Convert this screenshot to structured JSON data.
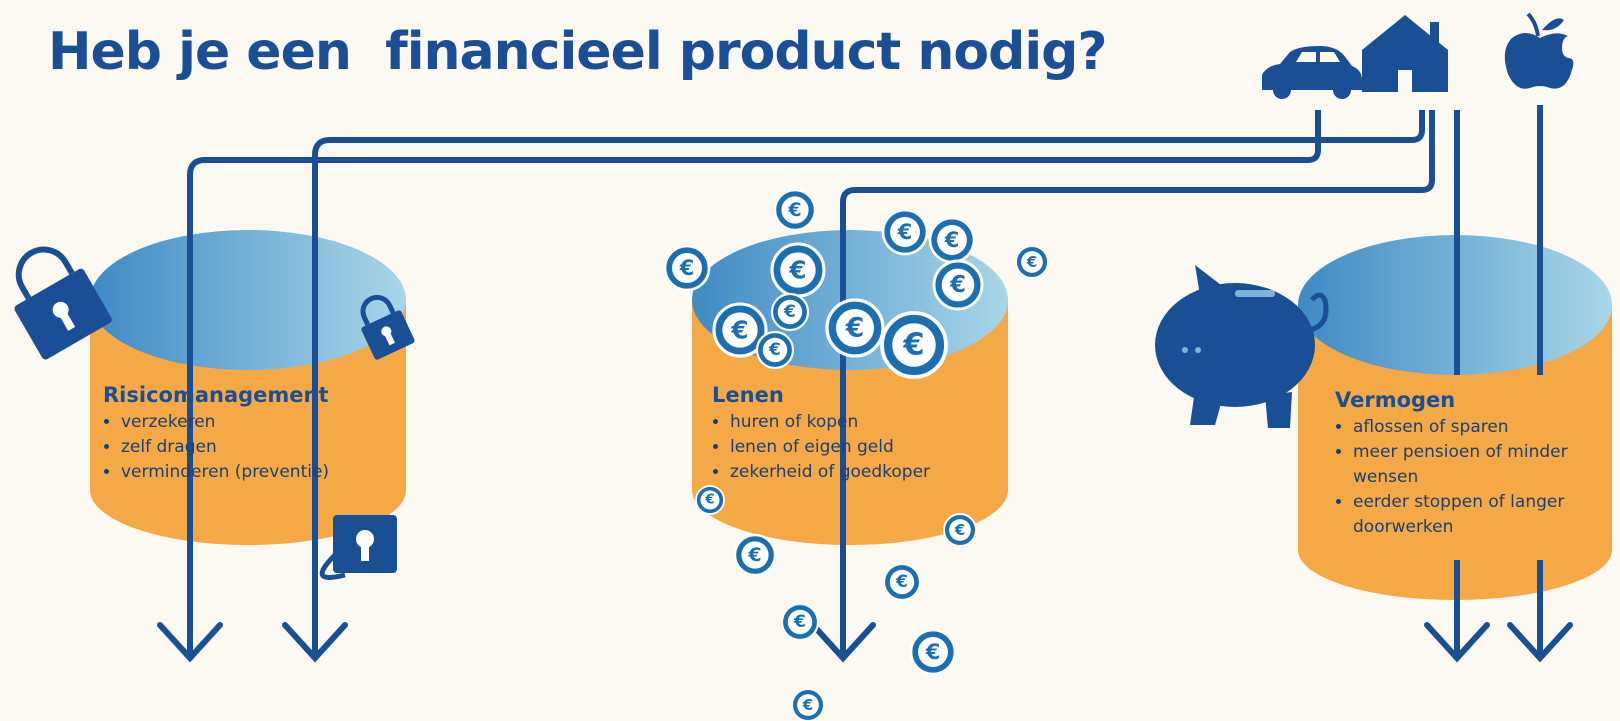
{
  "title": "Heb je een  financieel product nodig?",
  "coin_symbol": "€",
  "containers": [
    {
      "label": "Risicomanagement",
      "items": [
        "verzekeren",
        "zelf dragen",
        "verminderen (preventie)"
      ]
    },
    {
      "label": "Lenen",
      "items": [
        "huren of kopen",
        "lenen of eigen geld",
        "zekerheid of goedkoper"
      ]
    },
    {
      "label": "Vermogen",
      "items": [
        "aflossen of sparen",
        "meer pensioen of minder wensen",
        "eerder stoppen of langer doorwerken"
      ]
    }
  ]
}
